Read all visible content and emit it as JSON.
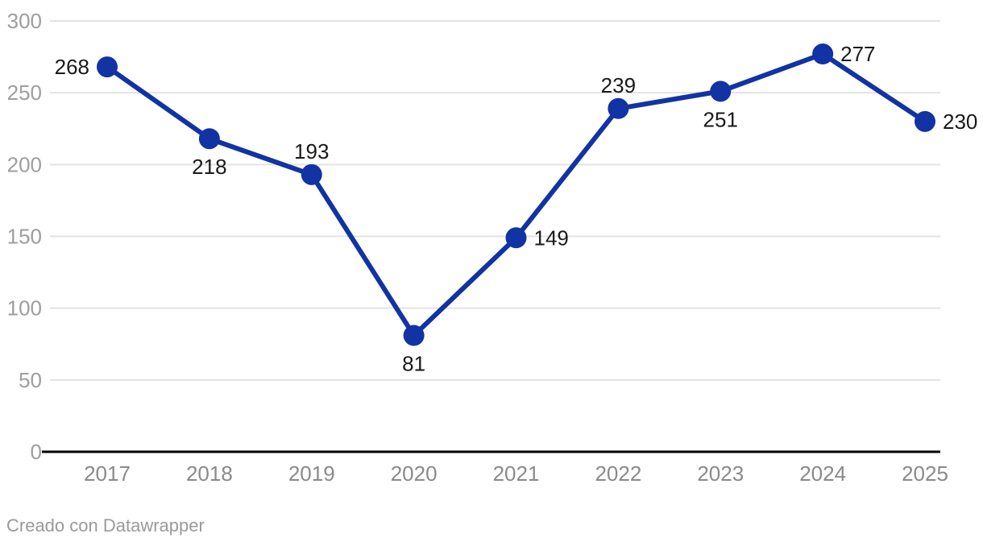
{
  "chart_data": {
    "type": "line",
    "categories": [
      "2017",
      "2018",
      "2019",
      "2020",
      "2021",
      "2022",
      "2023",
      "2024",
      "2025"
    ],
    "values": [
      268,
      218,
      193,
      81,
      149,
      239,
      251,
      277,
      230
    ],
    "series": [
      {
        "name": "value",
        "values": [
          268,
          218,
          193,
          81,
          149,
          239,
          251,
          277,
          230
        ]
      }
    ],
    "data_labels": [
      "268",
      "218",
      "193",
      "81",
      "149",
      "239",
      "251",
      "277",
      "230"
    ],
    "label_positions": [
      "left",
      "below",
      "above",
      "below",
      "right",
      "above",
      "below",
      "right",
      "right"
    ],
    "title": "",
    "xlabel": "",
    "ylabel": "",
    "ylim": [
      0,
      300
    ],
    "y_ticks": [
      0,
      50,
      100,
      150,
      200,
      250,
      300
    ],
    "grid": "horizontal",
    "legend": "none",
    "colors": {
      "line": "#1233a3",
      "marker": "#1233a3",
      "grid": "#e3e3e3",
      "axis": "#000000",
      "y_tick_text": "#9e9e9e",
      "x_tick_text": "#8a8a8a",
      "data_label_text": "#1a1a1a"
    }
  },
  "footer": {
    "text": "Creado con Datawrapper"
  }
}
